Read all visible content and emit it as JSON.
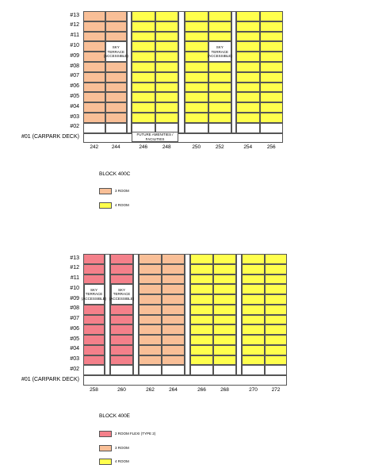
{
  "blocks": [
    {
      "title": "BLOCK 400C",
      "floors": [
        "#13",
        "#12",
        "#11",
        "#10",
        "#09",
        "#08",
        "#07",
        "#06",
        "#05",
        "#04",
        "#03"
      ],
      "void_deck": "#02",
      "carpark": "#01 (CARPARK DECK)",
      "units": [
        {
          "number": "242",
          "color": "#f9bf97"
        },
        {
          "number": "244",
          "color": "#f9bf97"
        },
        {
          "number": "246",
          "color": "#ffff4d"
        },
        {
          "number": "248",
          "color": "#ffff4d"
        },
        {
          "number": "250",
          "color": "#ffff4d"
        },
        {
          "number": "252",
          "color": "#ffff4d"
        },
        {
          "number": "254",
          "color": "#ffff4d"
        },
        {
          "number": "256",
          "color": "#ffff4d"
        }
      ],
      "sky_terrace": {
        "label": "SKY TERRACE (ACCESSIBLE)",
        "units": [
          "244",
          "252"
        ],
        "floors": [
          "#10",
          "#09"
        ]
      },
      "amenities": {
        "label": "FUTURE AMENITIES / FACILITIES",
        "units": [
          "246",
          "248"
        ]
      },
      "legend": [
        {
          "label": "3 ROOM",
          "color": "#f9bf97"
        },
        {
          "label": "4 ROOM",
          "color": "#ffff4d"
        }
      ]
    },
    {
      "title": "BLOCK 400E",
      "floors": [
        "#13",
        "#12",
        "#11",
        "#10",
        "#09",
        "#08",
        "#07",
        "#06",
        "#05",
        "#04",
        "#03"
      ],
      "void_deck": "#02",
      "carpark": "#01 (CARPARK DECK)",
      "units": [
        {
          "number": "258",
          "color": "#f4808a"
        },
        {
          "number": "260",
          "color": "#f4808a"
        },
        {
          "number": "262",
          "color": "#f9bf97"
        },
        {
          "number": "264",
          "color": "#f9bf97"
        },
        {
          "number": "266",
          "color": "#ffff4d"
        },
        {
          "number": "268",
          "color": "#ffff4d"
        },
        {
          "number": "270",
          "color": "#ffff4d"
        },
        {
          "number": "272",
          "color": "#ffff4d"
        }
      ],
      "sky_terrace": {
        "label": "SKY TERRACE (ACCESSIBLE)",
        "units": [
          "258",
          "260"
        ],
        "floors": [
          "#10",
          "#09"
        ]
      },
      "legend": [
        {
          "label": "2 ROOM FLEXI (TYPE 2)",
          "color": "#f4808a"
        },
        {
          "label": "3 ROOM",
          "color": "#f9bf97"
        },
        {
          "label": "4 ROOM",
          "color": "#ffff4d"
        }
      ]
    }
  ]
}
